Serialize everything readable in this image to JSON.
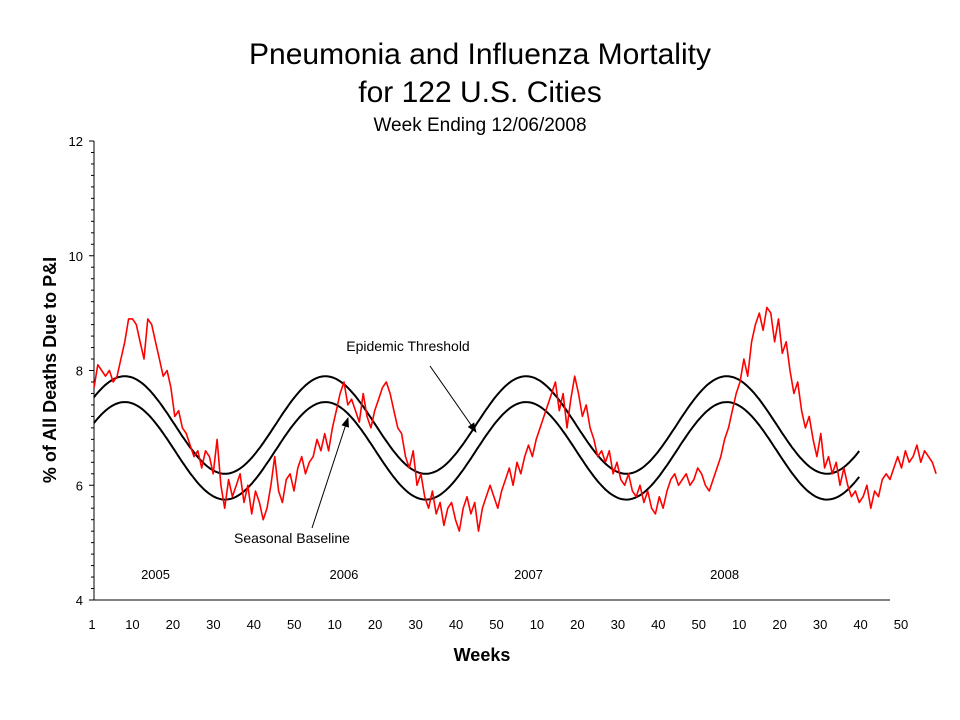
{
  "chart_data": {
    "type": "line",
    "title": "Pneumonia and Influenza Mortality",
    "title_line2": "for 122 U.S. Cities",
    "subtitle": "Week Ending 12/06/2008",
    "xlabel": "Weeks",
    "ylabel": "% of All Deaths Due to P&I",
    "ylim": [
      4,
      12
    ],
    "y_ticks": [
      "4",
      "6",
      "8",
      "10",
      "12"
    ],
    "x_ticks": [
      "1",
      "10",
      "20",
      "30",
      "40",
      "50",
      "10",
      "20",
      "30",
      "40",
      "50",
      "10",
      "20",
      "30",
      "40",
      "50",
      "10",
      "20",
      "30",
      "40",
      "50"
    ],
    "x_range_weeks": [
      1,
      208
    ],
    "year_labels": [
      {
        "label": "2005",
        "week": 17
      },
      {
        "label": "2006",
        "week": 66
      },
      {
        "label": "2007",
        "week": 114
      },
      {
        "label": "2008",
        "week": 165
      }
    ],
    "grid": false,
    "annotations": [
      {
        "text": "Epidemic Threshold",
        "series": "Epidemic Threshold"
      },
      {
        "text": "Seasonal Baseline",
        "series": "Seasonal Baseline"
      }
    ],
    "series": [
      {
        "name": "Epidemic Threshold",
        "color": "#000000",
        "model": "seasonal",
        "mean": 7.05,
        "amplitude": 0.85,
        "peak_week": 9,
        "period": 52.18,
        "x_range": [
          1,
          200
        ]
      },
      {
        "name": "Seasonal Baseline",
        "color": "#000000",
        "model": "seasonal",
        "mean": 6.6,
        "amplitude": 0.85,
        "peak_week": 9,
        "period": 52.18,
        "x_range": [
          1,
          200
        ]
      },
      {
        "color": "#ff0000",
        "x_start": 1,
        "values": [
          7.7,
          8.1,
          8.0,
          7.9,
          8.0,
          7.8,
          7.9,
          8.2,
          8.5,
          8.9,
          8.9,
          8.8,
          8.5,
          8.2,
          8.9,
          8.8,
          8.5,
          8.2,
          7.9,
          8.0,
          7.7,
          7.2,
          7.3,
          7.0,
          6.9,
          6.7,
          6.5,
          6.6,
          6.3,
          6.6,
          6.5,
          6.2,
          6.8,
          6.0,
          5.6,
          6.1,
          5.8,
          6.0,
          6.2,
          5.7,
          6.0,
          5.5,
          5.9,
          5.7,
          5.4,
          5.6,
          6.0,
          6.5,
          5.9,
          5.7,
          6.1,
          6.2,
          5.9,
          6.3,
          6.5,
          6.2,
          6.4,
          6.5,
          6.8,
          6.6,
          6.9,
          6.6,
          7.0,
          7.3,
          7.6,
          7.8,
          7.4,
          7.5,
          7.3,
          7.1,
          7.6,
          7.2,
          7.0,
          7.3,
          7.5,
          7.7,
          7.8,
          7.6,
          7.3,
          7.0,
          6.9,
          6.5,
          6.3,
          6.6,
          6.0,
          6.2,
          5.8,
          5.6,
          5.9,
          5.5,
          5.7,
          5.3,
          5.6,
          5.7,
          5.4,
          5.2,
          5.6,
          5.8,
          5.5,
          5.7,
          5.2,
          5.6,
          5.8,
          6.0,
          5.8,
          5.6,
          5.9,
          6.1,
          6.3,
          6.0,
          6.4,
          6.2,
          6.5,
          6.7,
          6.5,
          6.8,
          7.0,
          7.2,
          7.4,
          7.6,
          7.8,
          7.3,
          7.6,
          7.0,
          7.5,
          7.9,
          7.6,
          7.2,
          7.4,
          7.0,
          6.8,
          6.5,
          6.6,
          6.4,
          6.6,
          6.2,
          6.4,
          6.1,
          6.0,
          6.2,
          5.9,
          5.8,
          6.0,
          5.7,
          5.9,
          5.6,
          5.5,
          5.8,
          5.6,
          5.9,
          6.1,
          6.2,
          6.0,
          6.1,
          6.2,
          6.0,
          6.1,
          6.3,
          6.2,
          6.0,
          5.9,
          6.1,
          6.3,
          6.5,
          6.8,
          7.0,
          7.3,
          7.6,
          7.8,
          8.2,
          7.9,
          8.5,
          8.8,
          9.0,
          8.7,
          9.1,
          9.0,
          8.5,
          8.9,
          8.3,
          8.5,
          8.0,
          7.6,
          7.8,
          7.3,
          7.0,
          7.2,
          6.8,
          6.5,
          6.9,
          6.3,
          6.5,
          6.2,
          6.4,
          6.0,
          6.3,
          6.0,
          5.8,
          5.9,
          5.7,
          5.8,
          6.0,
          5.6,
          5.9,
          5.8,
          6.1,
          6.2,
          6.1,
          6.3,
          6.5,
          6.3,
          6.6,
          6.4,
          6.5,
          6.7,
          6.4,
          6.6,
          6.5,
          6.4,
          6.2
        ]
      }
    ]
  }
}
